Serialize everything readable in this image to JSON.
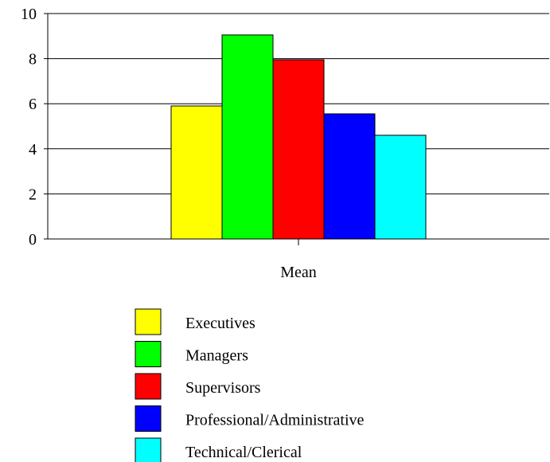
{
  "chart_data": {
    "type": "bar",
    "categories": [
      "Mean"
    ],
    "series": [
      {
        "name": "Executives",
        "values": [
          5.9
        ],
        "color": "#ffff00"
      },
      {
        "name": "Managers",
        "values": [
          9.05
        ],
        "color": "#00ff00"
      },
      {
        "name": "Supervisors",
        "values": [
          7.95
        ],
        "color": "#ff0000"
      },
      {
        "name": "Professional/Administrative",
        "values": [
          5.55
        ],
        "color": "#0000ff"
      },
      {
        "name": "Technical/Clerical",
        "values": [
          4.6
        ],
        "color": "#00ffff"
      }
    ],
    "yticks": [
      "0",
      "2",
      "4",
      "6",
      "8",
      "10"
    ],
    "ylim": [
      0,
      10
    ],
    "grid": true,
    "legend_position": "bottom"
  }
}
